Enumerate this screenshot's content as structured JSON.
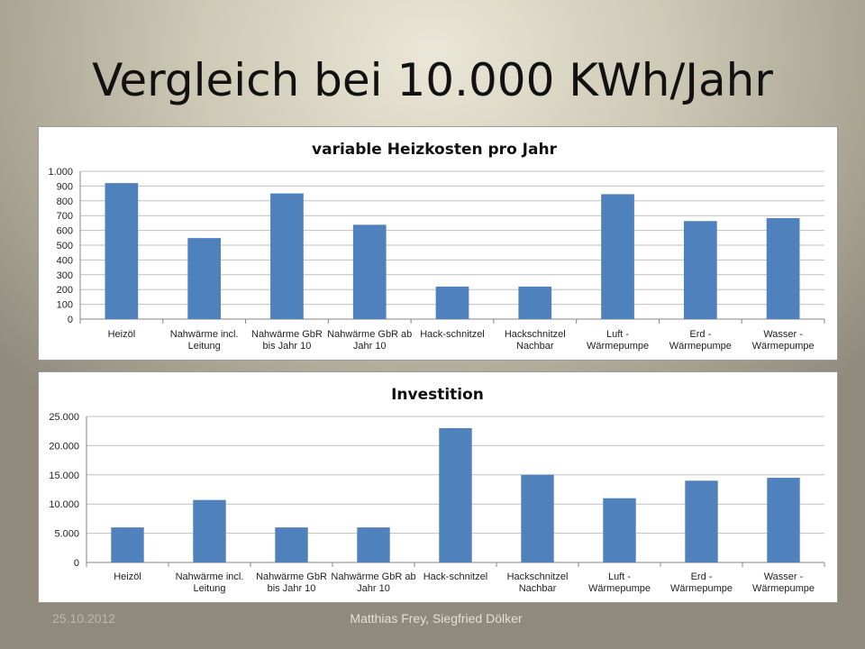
{
  "slide": {
    "title": "Vergleich bei 10.000 KWh/Jahr",
    "footer_date": "25.10.2012",
    "footer_author": "Matthias Frey, Siegfried Dölker"
  },
  "colors": {
    "bar": "#4f81bd",
    "grid": "#bfbfbf",
    "axis": "#868686"
  },
  "chart_data": [
    {
      "type": "bar",
      "title": "variable Heizkosten pro Jahr",
      "categories": [
        [
          "Heizöl"
        ],
        [
          "Nahwärme incl.",
          "Leitung"
        ],
        [
          "Nahwärme GbR",
          "bis Jahr 10"
        ],
        [
          "Nahwärme GbR ab",
          "Jahr 10"
        ],
        [
          "Hack-schnitzel"
        ],
        [
          "Hackschnitzel",
          "Nachbar"
        ],
        [
          "Luft -",
          "Wärmepumpe"
        ],
        [
          "Erd -",
          "Wärmepumpe"
        ],
        [
          "Wasser -",
          "Wärmepumpe"
        ]
      ],
      "values": [
        920,
        548,
        850,
        638,
        220,
        220,
        845,
        663,
        683
      ],
      "ylim": [
        0,
        1000
      ],
      "yticks": [
        0,
        100,
        200,
        300,
        400,
        500,
        600,
        700,
        800,
        900,
        1000
      ],
      "ytick_labels": [
        "0",
        "100",
        "200",
        "300",
        "400",
        "500",
        "600",
        "700",
        "800",
        "900",
        "1.000"
      ],
      "grid": true,
      "legend": "none"
    },
    {
      "type": "bar",
      "title": "Investition",
      "categories": [
        [
          "Heizöl"
        ],
        [
          "Nahwärme incl.",
          "Leitung"
        ],
        [
          "Nahwärme GbR",
          "bis Jahr 10"
        ],
        [
          "Nahwärme GbR ab",
          "Jahr 10"
        ],
        [
          "Hack-schnitzel"
        ],
        [
          "Hackschnitzel",
          "Nachbar"
        ],
        [
          "Luft -",
          "Wärmepumpe"
        ],
        [
          "Erd -",
          "Wärmepumpe"
        ],
        [
          "Wasser -",
          "Wärmepumpe"
        ]
      ],
      "values": [
        6000,
        10700,
        6000,
        6000,
        23000,
        15000,
        11000,
        14000,
        14500
      ],
      "ylim": [
        0,
        25000
      ],
      "yticks": [
        0,
        5000,
        10000,
        15000,
        20000,
        25000
      ],
      "ytick_labels": [
        "0",
        "5.000",
        "10.000",
        "15.000",
        "20.000",
        "25.000"
      ],
      "grid": true,
      "legend": "none"
    }
  ]
}
